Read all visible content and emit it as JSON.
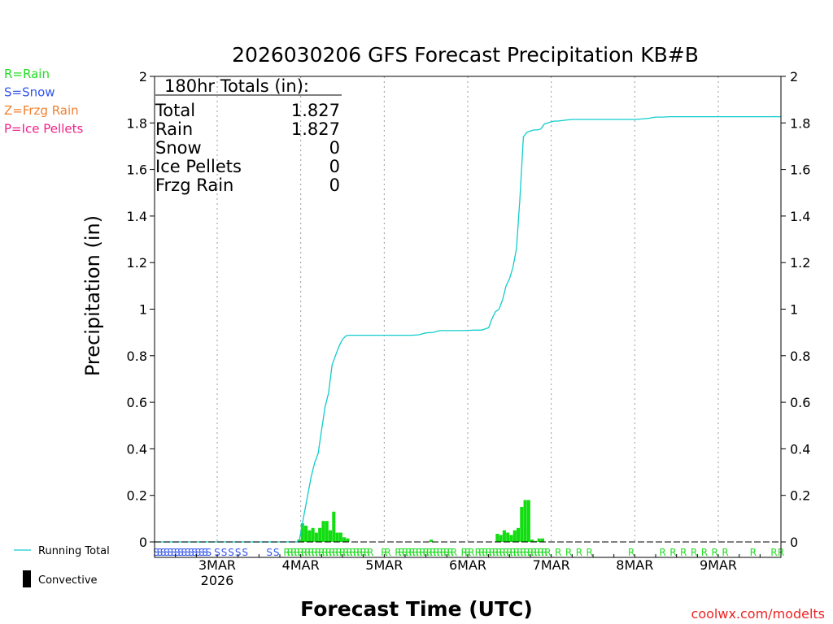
{
  "chart_data": {
    "type": "bar+line",
    "title": "2026030206 GFS Forecast Precipitation KB#B",
    "ylabel": "Precipitation (in)",
    "xlabel": "Forecast Time (UTC)",
    "ylim": [
      0,
      2
    ],
    "y_ticks": [
      "0",
      "0.2",
      "0.4",
      "0.6",
      "0.8",
      "1",
      "1.2",
      "1.4",
      "1.6",
      "1.8",
      "2"
    ],
    "x_range_hours": [
      0,
      180
    ],
    "x_ticks": [
      {
        "hour": 18,
        "label": "3MAR",
        "sublabel": "2026"
      },
      {
        "hour": 42,
        "label": "4MAR"
      },
      {
        "hour": 66,
        "label": "5MAR"
      },
      {
        "hour": 90,
        "label": "6MAR"
      },
      {
        "hour": 114,
        "label": "7MAR"
      },
      {
        "hour": 138,
        "label": "8MAR"
      },
      {
        "hour": 162,
        "label": "9MAR"
      }
    ],
    "grid": "dotted vertical at day boundaries",
    "totals_box": {
      "heading": "180hr Totals (in):",
      "rows": [
        {
          "label": "Total",
          "value": "1.827"
        },
        {
          "label": "Rain",
          "value": "1.827"
        },
        {
          "label": "Snow",
          "value": "0"
        },
        {
          "label": "Ice Pellets",
          "value": "0"
        },
        {
          "label": "Frzg Rain",
          "value": "0"
        }
      ]
    },
    "ptype_legend": [
      {
        "text": "R=Rain",
        "color": "#22dd22"
      },
      {
        "text": "S=Snow",
        "color": "#3355ee"
      },
      {
        "text": "Z=Frzg Rain",
        "color": "#f08030"
      },
      {
        "text": "P=Ice Pellets",
        "color": "#ee2288"
      }
    ],
    "series_legend": [
      {
        "name": "Running Total",
        "color": "#11cccc",
        "style": "line"
      },
      {
        "name": "Convective",
        "color": "#000000",
        "style": "bar"
      }
    ],
    "running_total": {
      "hours": [
        0,
        41.5,
        42,
        43,
        44,
        45,
        46,
        47,
        48,
        49,
        50,
        51,
        52,
        53,
        54,
        55,
        56,
        58,
        60,
        62,
        64,
        66,
        68,
        70,
        72,
        74,
        76,
        78,
        80,
        82,
        84,
        86,
        88,
        90,
        92,
        94,
        96,
        97,
        98,
        99,
        100,
        101,
        102,
        103,
        104,
        105,
        106,
        107,
        108,
        109,
        110,
        111,
        112,
        113,
        114,
        115,
        116,
        118,
        120,
        122,
        124,
        126,
        128,
        130,
        132,
        134,
        136,
        138,
        140,
        142,
        144,
        146,
        148,
        150,
        152,
        154,
        156,
        160,
        164,
        168,
        172,
        176,
        180
      ],
      "values": [
        0,
        0,
        0.04,
        0.12,
        0.2,
        0.28,
        0.34,
        0.38,
        0.48,
        0.58,
        0.64,
        0.76,
        0.8,
        0.84,
        0.87,
        0.885,
        0.888,
        0.888,
        0.888,
        0.888,
        0.888,
        0.888,
        0.888,
        0.888,
        0.888,
        0.888,
        0.89,
        0.898,
        0.9,
        0.908,
        0.908,
        0.908,
        0.908,
        0.909,
        0.91,
        0.91,
        0.92,
        0.96,
        0.99,
        1.0,
        1.04,
        1.1,
        1.13,
        1.18,
        1.26,
        1.48,
        1.74,
        1.76,
        1.765,
        1.77,
        1.77,
        1.774,
        1.795,
        1.8,
        1.805,
        1.808,
        1.808,
        1.812,
        1.815,
        1.815,
        1.815,
        1.815,
        1.815,
        1.815,
        1.815,
        1.815,
        1.815,
        1.815,
        1.817,
        1.82,
        1.825,
        1.825,
        1.827,
        1.827,
        1.827,
        1.827,
        1.827,
        1.827,
        1.827,
        1.827,
        1.827,
        1.827,
        1.827
      ]
    },
    "rain_bars": {
      "color": "#11dd11",
      "hours": [
        41.5,
        42.5,
        43.5,
        44.5,
        45.5,
        46.5,
        47.5,
        48.5,
        49.5,
        50.5,
        51.5,
        52.5,
        53.5,
        54.5,
        55.5,
        79.5,
        98.5,
        99.5,
        100.5,
        101.5,
        102.5,
        103.5,
        104.5,
        105.5,
        106.5,
        107.5,
        108.5,
        109.5,
        110.5,
        111.5
      ],
      "values": [
        0.01,
        0.08,
        0.07,
        0.05,
        0.06,
        0.04,
        0.06,
        0.09,
        0.09,
        0.05,
        0.13,
        0.04,
        0.04,
        0.02,
        0.015,
        0.01,
        0.035,
        0.03,
        0.05,
        0.04,
        0.03,
        0.05,
        0.06,
        0.15,
        0.18,
        0.18,
        0.01,
        0.004,
        0.015,
        0.015
      ]
    },
    "ptype_markers": {
      "rows": [
        {
          "hours_from": 0.5,
          "hours_to": 15.5,
          "step": 1,
          "char": "S",
          "color": "#3355ee"
        },
        {
          "hours_from": 18,
          "hours_to": 26,
          "step": 2,
          "char": "S",
          "color": "#3355ee"
        },
        {
          "hours_from": 33,
          "hours_to": 35,
          "step": 2,
          "char": "S",
          "color": "#3355ee"
        },
        {
          "hours_from": 38,
          "hours_to": 62,
          "step": 1,
          "char": "R",
          "color": "#22dd22"
        },
        {
          "hours_from": 66,
          "hours_to": 67,
          "step": 1,
          "char": "R",
          "color": "#22dd22"
        },
        {
          "hours_from": 70,
          "hours_to": 86,
          "step": 1,
          "char": "R",
          "color": "#22dd22"
        },
        {
          "hours_from": 89,
          "hours_to": 91,
          "step": 1,
          "char": "R",
          "color": "#22dd22"
        },
        {
          "hours_from": 93,
          "hours_to": 112,
          "step": 1,
          "char": "R",
          "color": "#22dd22"
        },
        {
          "hours_from": 113,
          "hours_to": 126,
          "step": 3,
          "char": "R",
          "color": "#22dd22"
        },
        {
          "hours_from": 137,
          "hours_to": 137,
          "step": 3,
          "char": "R",
          "color": "#22dd22"
        },
        {
          "hours_from": 146,
          "hours_to": 164,
          "step": 3,
          "char": "R",
          "color": "#22dd22"
        },
        {
          "hours_from": 172,
          "hours_to": 172,
          "step": 3,
          "char": "R",
          "color": "#22dd22"
        },
        {
          "hours_from": 178,
          "hours_to": 180,
          "step": 2,
          "char": "R",
          "color": "#22dd22"
        }
      ]
    },
    "watermark": "coolwx.com/modelts"
  }
}
